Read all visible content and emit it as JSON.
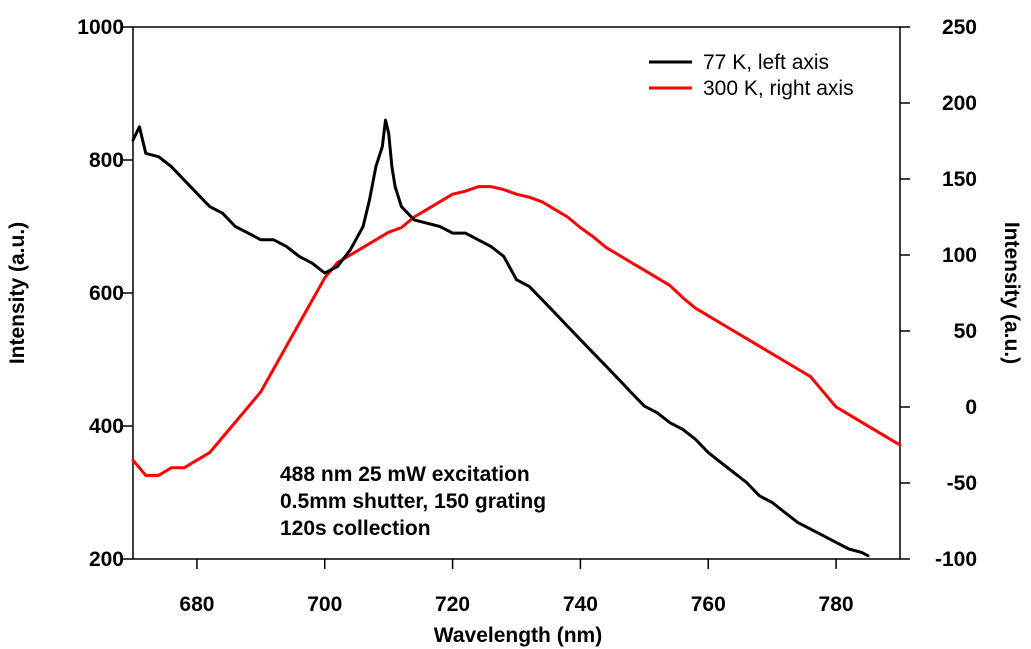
{
  "chart_data": {
    "type": "line",
    "title": "",
    "xlabel": "Wavelength (nm)",
    "ylabel_left": "Intensity (a.u.)",
    "ylabel_right": "Intensity (a.u.)",
    "xlim": [
      670,
      790
    ],
    "ylim_left": [
      200,
      1000
    ],
    "ylim_right": [
      -100,
      250
    ],
    "x_ticks": [
      680,
      700,
      720,
      740,
      760,
      780
    ],
    "x_tick_labels": [
      "680",
      "700",
      "720",
      "740",
      "760",
      "780"
    ],
    "y_left_ticks": [
      200,
      400,
      600,
      800,
      1000
    ],
    "y_left_tick_labels": [
      "200",
      "400",
      "600",
      "800",
      "1000"
    ],
    "y_right_ticks": [
      -100,
      -50,
      0,
      50,
      100,
      150,
      200,
      250
    ],
    "y_right_tick_labels": [
      "-100",
      "-50",
      "0",
      "50",
      "100",
      "150",
      "200",
      "250"
    ],
    "grid": false,
    "legend_position": "top-right",
    "annotation_lines": [
      "488 nm 25 mW excitation",
      "0.5mm shutter, 150 grating",
      "120s collection"
    ],
    "series": [
      {
        "name": "77 K, left axis",
        "axis": "left",
        "color": "#000000",
        "x": [
          670,
          671,
          672,
          674,
          676,
          678,
          680,
          682,
          684,
          686,
          688,
          690,
          692,
          694,
          696,
          698,
          700,
          702,
          704,
          706,
          707,
          708,
          709,
          709.5,
          710,
          710.5,
          711,
          712,
          714,
          716,
          718,
          720,
          722,
          724,
          726,
          728,
          730,
          732,
          734,
          736,
          738,
          740,
          742,
          744,
          746,
          748,
          750,
          752,
          754,
          756,
          758,
          760,
          762,
          764,
          766,
          768,
          770,
          772,
          774,
          776,
          778,
          780,
          782,
          784,
          785
        ],
        "values": [
          830,
          850,
          810,
          805,
          790,
          770,
          750,
          730,
          720,
          700,
          690,
          680,
          680,
          670,
          655,
          645,
          630,
          640,
          665,
          700,
          740,
          790,
          820,
          860,
          840,
          790,
          760,
          730,
          710,
          705,
          700,
          690,
          690,
          680,
          670,
          655,
          620,
          610,
          590,
          570,
          550,
          530,
          510,
          490,
          470,
          450,
          430,
          420,
          405,
          395,
          380,
          360,
          345,
          330,
          315,
          295,
          285,
          270,
          255,
          245,
          235,
          225,
          215,
          210,
          205
        ]
      },
      {
        "name": "300 K, right axis",
        "axis": "right",
        "color": "#ff0000",
        "x": [
          670,
          672,
          674,
          676,
          678,
          680,
          682,
          684,
          686,
          688,
          690,
          692,
          694,
          696,
          698,
          700,
          702,
          704,
          706,
          708,
          710,
          712,
          714,
          716,
          718,
          720,
          722,
          724,
          726,
          728,
          730,
          732,
          734,
          736,
          738,
          740,
          742,
          744,
          746,
          748,
          750,
          752,
          754,
          756,
          758,
          760,
          762,
          764,
          766,
          768,
          770,
          772,
          774,
          776,
          778,
          780,
          782,
          784,
          786,
          788,
          790
        ],
        "values": [
          -35,
          -45,
          -45,
          -40,
          -40,
          -35,
          -30,
          -20,
          -10,
          0,
          10,
          25,
          40,
          55,
          70,
          85,
          95,
          100,
          105,
          110,
          115,
          118,
          125,
          130,
          135,
          140,
          142,
          145,
          145,
          143,
          140,
          138,
          135,
          130,
          125,
          118,
          112,
          105,
          100,
          95,
          90,
          85,
          80,
          72,
          65,
          60,
          55,
          50,
          45,
          40,
          35,
          30,
          25,
          20,
          10,
          0,
          -5,
          -10,
          -15,
          -20,
          -25
        ]
      }
    ]
  }
}
